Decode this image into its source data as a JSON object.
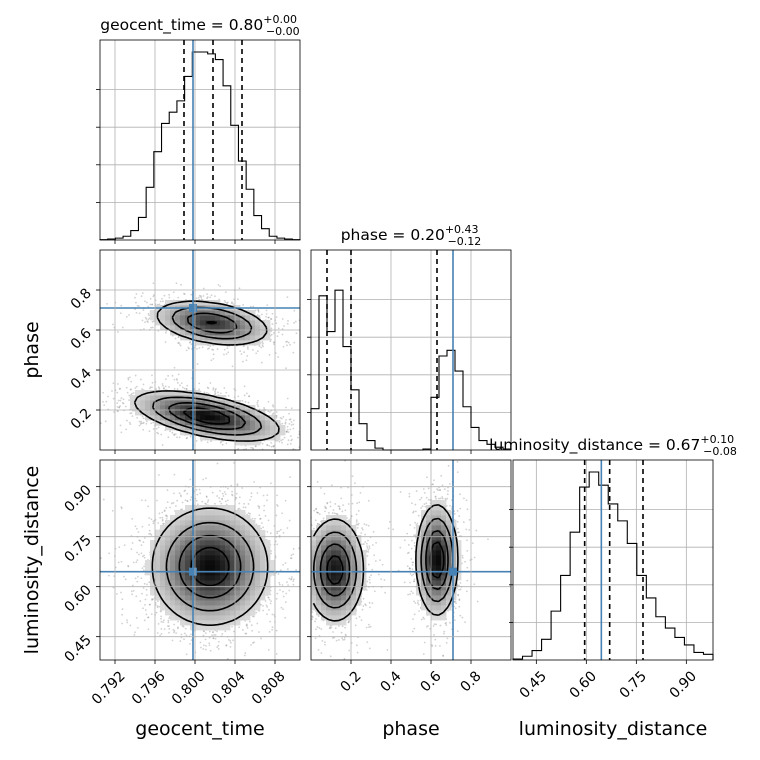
{
  "chart_data": {
    "type": "corner",
    "truth_color": "#4682b4",
    "parameters": [
      {
        "name": "geocent_time",
        "axis_label": "geocent_time",
        "range": [
          0.7905,
          0.8105
        ],
        "ticks": [
          "0.792",
          "0.796",
          "0.800",
          "0.804",
          "0.808"
        ],
        "tick_values": [
          0.792,
          0.796,
          0.8,
          0.804,
          0.808
        ],
        "truth": 0.7998,
        "quantiles": [
          0.7989,
          0.8018,
          0.8047
        ],
        "title": {
          "label": "geocent_time = 0.80",
          "plus": "+0.00",
          "minus": "−0.00"
        },
        "hist": [
          0.002,
          0.005,
          0.01,
          0.02,
          0.05,
          0.12,
          0.28,
          0.47,
          0.62,
          0.68,
          0.74,
          0.87,
          1.0,
          1.0,
          0.99,
          0.96,
          0.82,
          0.61,
          0.42,
          0.27,
          0.13,
          0.06,
          0.02,
          0.01,
          0.005,
          0.002
        ]
      },
      {
        "name": "phase",
        "axis_label": "phase",
        "range": [
          0.0,
          1.0
        ],
        "ticks": [
          "0.2",
          "0.4",
          "0.6",
          "0.8"
        ],
        "tick_values": [
          0.2,
          0.4,
          0.6,
          0.8
        ],
        "truth": 0.71,
        "quantiles": [
          0.08,
          0.2,
          0.63
        ],
        "title": {
          "label": "phase = 0.20",
          "plus": "+0.43",
          "minus": "−0.12"
        },
        "hist": [
          0.22,
          0.82,
          0.63,
          0.85,
          0.55,
          0.32,
          0.14,
          0.05,
          0.01,
          0.0,
          0.0,
          0.0,
          0.0,
          0.0,
          0.005,
          0.28,
          0.5,
          0.53,
          0.42,
          0.23,
          0.12,
          0.05,
          0.03,
          0.015,
          0.005
        ]
      },
      {
        "name": "luminosity_distance",
        "axis_label": "luminosity_distance",
        "range": [
          0.38,
          0.98
        ],
        "ticks": [
          "0.45",
          "0.60",
          "0.75",
          "0.90"
        ],
        "tick_values": [
          0.45,
          0.6,
          0.75,
          0.9
        ],
        "truth": 0.645,
        "quantiles": [
          0.595,
          0.67,
          0.77
        ],
        "title": {
          "label": "luminosity_distance = 0.67",
          "plus": "+0.10",
          "minus": "−0.08"
        },
        "hist": [
          0.005,
          0.02,
          0.05,
          0.11,
          0.26,
          0.45,
          0.68,
          0.92,
          1.0,
          0.93,
          0.83,
          0.74,
          0.62,
          0.45,
          0.33,
          0.23,
          0.17,
          0.12,
          0.08,
          0.04,
          0.03
        ]
      }
    ],
    "pairs": [
      {
        "x": "geocent_time",
        "y": "phase",
        "modes": [
          {
            "cx": 0.8017,
            "cy": 0.635,
            "sx": 0.0028,
            "sy": 0.055,
            "rho": -0.35,
            "w": 0.4
          },
          {
            "cx": 0.8012,
            "cy": 0.17,
            "sx": 0.0035,
            "sy": 0.06,
            "rho": -0.55,
            "w": 0.6
          }
        ]
      },
      {
        "x": "geocent_time",
        "y": "luminosity_distance",
        "modes": [
          {
            "cx": 0.8015,
            "cy": 0.66,
            "sx": 0.0028,
            "sy": 0.085,
            "rho": 0.0,
            "w": 1.0
          }
        ]
      },
      {
        "x": "phase",
        "y": "luminosity_distance",
        "modes": [
          {
            "cx": 0.12,
            "cy": 0.65,
            "sx": 0.07,
            "sy": 0.075,
            "rho": 0.0,
            "w": 0.55
          },
          {
            "cx": 0.63,
            "cy": 0.68,
            "sx": 0.05,
            "sy": 0.08,
            "rho": 0.0,
            "w": 0.45
          }
        ]
      }
    ]
  }
}
